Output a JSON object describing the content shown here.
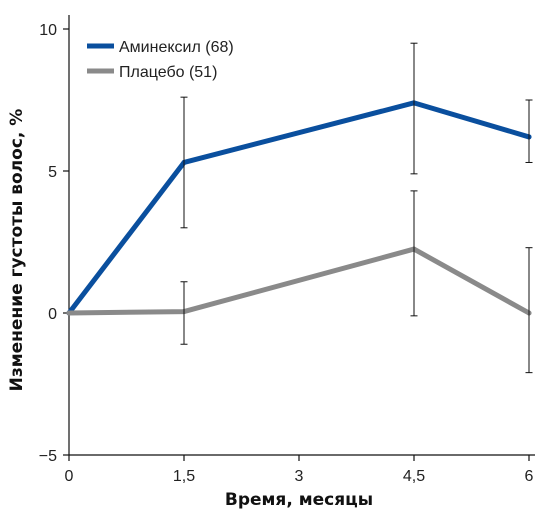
{
  "chart_data": {
    "type": "line",
    "title": "",
    "xlabel": "Время, месяцы",
    "ylabel": "Изменение густоты волос, %",
    "x": [
      0,
      1.5,
      3,
      4.5,
      6
    ],
    "x_tick_labels": [
      "0",
      "1,5",
      "3",
      "4,5",
      "6"
    ],
    "xlim": [
      0,
      6
    ],
    "ylim": [
      -5,
      10
    ],
    "y_ticks": [
      -5,
      0,
      5,
      10
    ],
    "y_tick_labels": [
      "−5",
      "0",
      "5",
      "10"
    ],
    "grid": false,
    "legend_position": "top-left",
    "series": [
      {
        "name": "Аминексил (68)",
        "color": "#0a4f9e",
        "x": [
          0,
          1.5,
          4.5,
          6
        ],
        "values": [
          0,
          5.3,
          7.4,
          6.2
        ],
        "error_low": [
          null,
          3.0,
          4.9,
          5.3
        ],
        "error_high": [
          null,
          7.6,
          9.5,
          7.5
        ]
      },
      {
        "name": "Плацебо (51)",
        "color": "#8a8a8a",
        "x": [
          0,
          1.5,
          4.5,
          6
        ],
        "values": [
          0,
          0.05,
          2.25,
          0
        ],
        "error_low": [
          null,
          -1.1,
          -0.1,
          -2.1
        ],
        "error_high": [
          null,
          1.1,
          4.3,
          2.3
        ]
      }
    ]
  }
}
